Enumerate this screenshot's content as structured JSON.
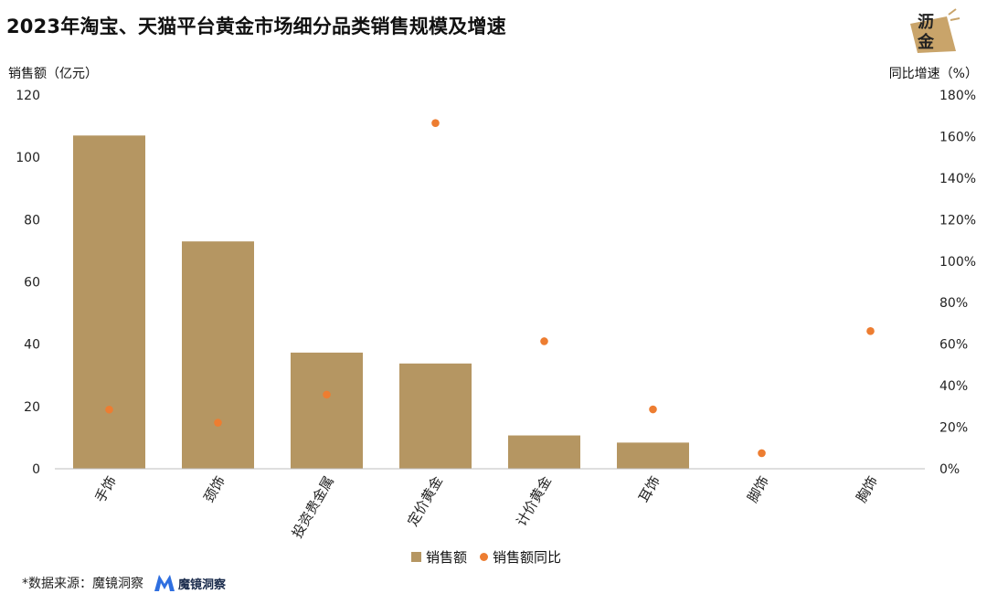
{
  "header": {
    "title": "2023年淘宝、天猫平台黄金市场细分品类销售规模及增速",
    "logo_text_top": "沥",
    "logo_text_bottom": "金"
  },
  "source": {
    "label": "*数据来源：魔镜洞察",
    "brand": "魔镜洞察"
  },
  "colors": {
    "bar": "#B59662",
    "dot": "#ED7D31",
    "axis": "#BFBFBF",
    "logo": "#C9A46A"
  },
  "chart_data": {
    "type": "bar",
    "title": "2023年淘宝、天猫平台黄金市场细分品类销售规模及增速",
    "categories": [
      "手饰",
      "颈饰",
      "投资贵金属",
      "定价黄金",
      "计价黄金",
      "耳饰",
      "脚饰",
      "胸饰"
    ],
    "series": [
      {
        "name": "销售额",
        "type": "bar",
        "axis": "left",
        "values": [
          107,
          73,
          37.3,
          33.8,
          10.7,
          8.4,
          0,
          0
        ]
      },
      {
        "name": "销售额同比",
        "type": "scatter",
        "axis": "right",
        "values": [
          28.5,
          22.2,
          35.7,
          166.5,
          61.4,
          28.6,
          7.5,
          66.3
        ]
      }
    ],
    "y_left": {
      "label": "销售额（亿元）",
      "ylim": [
        0,
        120
      ],
      "ticks": [
        "0",
        "20",
        "40",
        "60",
        "80",
        "100",
        "120"
      ]
    },
    "y_right": {
      "label": "同比增速（%）",
      "ylim": [
        0,
        180
      ],
      "ticks": [
        "0%",
        "20%",
        "40%",
        "60%",
        "80%",
        "100%",
        "120%",
        "140%",
        "160%",
        "180%"
      ]
    },
    "legend": [
      "销售额",
      "销售额同比"
    ],
    "legend_position": "bottom",
    "grid": false
  }
}
